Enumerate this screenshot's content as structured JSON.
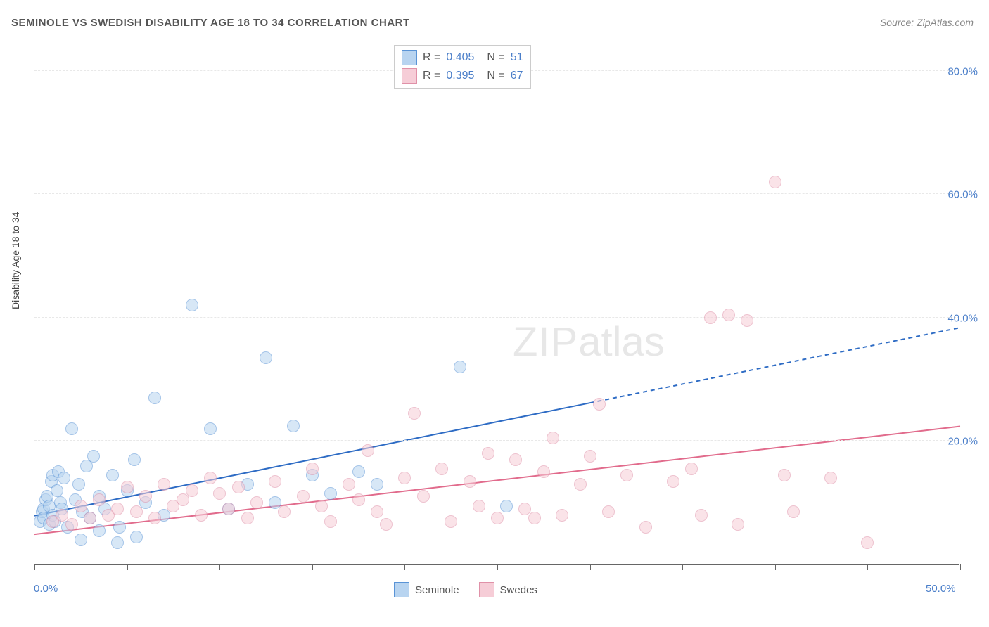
{
  "title": "SEMINOLE VS SWEDISH DISABILITY AGE 18 TO 34 CORRELATION CHART",
  "source": "Source: ZipAtlas.com",
  "y_axis_label": "Disability Age 18 to 34",
  "watermark": {
    "bold": "ZIP",
    "rest": "atlas"
  },
  "chart": {
    "type": "scatter",
    "xlim": [
      0,
      50
    ],
    "ylim": [
      0,
      85
    ],
    "x_ticks": [
      0,
      5,
      10,
      15,
      20,
      25,
      30,
      35,
      40,
      45,
      50
    ],
    "x_tick_labels": {
      "0": "0.0%",
      "50": "50.0%"
    },
    "y_ticks": [
      20,
      40,
      60,
      80
    ],
    "y_tick_labels": [
      "20.0%",
      "40.0%",
      "60.0%",
      "80.0%"
    ],
    "background_color": "#ffffff",
    "grid_color": "#e8e8e8",
    "axis_color": "#666666",
    "point_radius": 9,
    "point_opacity": 0.55,
    "series": [
      {
        "name": "Seminole",
        "color_fill": "#b8d4f0",
        "color_stroke": "#5a94d6",
        "R": "0.405",
        "N": "51",
        "trend": {
          "x1": 0,
          "y1": 8.0,
          "x2": 50,
          "y2": 38.5,
          "solid_until_x": 30,
          "color": "#2d6bc4",
          "width": 2
        },
        "points": [
          [
            0.3,
            7.0
          ],
          [
            0.4,
            8.5
          ],
          [
            0.5,
            9.0
          ],
          [
            0.5,
            7.5
          ],
          [
            0.6,
            10.5
          ],
          [
            0.7,
            11.0
          ],
          [
            0.8,
            6.5
          ],
          [
            0.8,
            9.5
          ],
          [
            0.9,
            13.5
          ],
          [
            1.0,
            14.5
          ],
          [
            1.0,
            8.0
          ],
          [
            1.1,
            7.0
          ],
          [
            1.2,
            12.0
          ],
          [
            1.3,
            15.0
          ],
          [
            1.4,
            10.0
          ],
          [
            1.5,
            9.0
          ],
          [
            1.6,
            14.0
          ],
          [
            1.8,
            6.0
          ],
          [
            2.0,
            22.0
          ],
          [
            2.2,
            10.5
          ],
          [
            2.4,
            13.0
          ],
          [
            2.6,
            8.5
          ],
          [
            2.8,
            16.0
          ],
          [
            3.0,
            7.5
          ],
          [
            3.2,
            17.5
          ],
          [
            3.5,
            11.0
          ],
          [
            3.8,
            9.0
          ],
          [
            4.2,
            14.5
          ],
          [
            4.6,
            6.0
          ],
          [
            5.0,
            12.0
          ],
          [
            5.4,
            17.0
          ],
          [
            6.0,
            10.0
          ],
          [
            6.5,
            27.0
          ],
          [
            7.0,
            8.0
          ],
          [
            2.5,
            4.0
          ],
          [
            3.5,
            5.5
          ],
          [
            4.5,
            3.5
          ],
          [
            5.5,
            4.5
          ],
          [
            8.5,
            42.0
          ],
          [
            9.5,
            22.0
          ],
          [
            10.5,
            9.0
          ],
          [
            11.5,
            13.0
          ],
          [
            12.5,
            33.5
          ],
          [
            13.0,
            10.0
          ],
          [
            14.0,
            22.5
          ],
          [
            15.0,
            14.5
          ],
          [
            16.0,
            11.5
          ],
          [
            17.5,
            15.0
          ],
          [
            18.5,
            13.0
          ],
          [
            23.0,
            32.0
          ],
          [
            25.5,
            9.5
          ]
        ]
      },
      {
        "name": "Swedes",
        "color_fill": "#f6cdd7",
        "color_stroke": "#e091a8",
        "R": "0.395",
        "N": "67",
        "trend": {
          "x1": 0,
          "y1": 5.0,
          "x2": 50,
          "y2": 22.5,
          "solid_until_x": 50,
          "color": "#e16b8c",
          "width": 2
        },
        "points": [
          [
            1.0,
            7.0
          ],
          [
            1.5,
            8.0
          ],
          [
            2.0,
            6.5
          ],
          [
            2.5,
            9.5
          ],
          [
            3.0,
            7.5
          ],
          [
            3.5,
            10.5
          ],
          [
            4.0,
            8.0
          ],
          [
            4.5,
            9.0
          ],
          [
            5.0,
            12.5
          ],
          [
            5.5,
            8.5
          ],
          [
            6.0,
            11.0
          ],
          [
            6.5,
            7.5
          ],
          [
            7.0,
            13.0
          ],
          [
            7.5,
            9.5
          ],
          [
            8.0,
            10.5
          ],
          [
            8.5,
            12.0
          ],
          [
            9.0,
            8.0
          ],
          [
            9.5,
            14.0
          ],
          [
            10.0,
            11.5
          ],
          [
            10.5,
            9.0
          ],
          [
            11.0,
            12.5
          ],
          [
            11.5,
            7.5
          ],
          [
            12.0,
            10.0
          ],
          [
            13.0,
            13.5
          ],
          [
            13.5,
            8.5
          ],
          [
            14.5,
            11.0
          ],
          [
            15.0,
            15.5
          ],
          [
            15.5,
            9.5
          ],
          [
            16.0,
            7.0
          ],
          [
            17.0,
            13.0
          ],
          [
            17.5,
            10.5
          ],
          [
            18.0,
            18.5
          ],
          [
            18.5,
            8.5
          ],
          [
            19.0,
            6.5
          ],
          [
            20.0,
            14.0
          ],
          [
            20.5,
            24.5
          ],
          [
            21.0,
            11.0
          ],
          [
            22.0,
            15.5
          ],
          [
            22.5,
            7.0
          ],
          [
            23.5,
            13.5
          ],
          [
            24.0,
            9.5
          ],
          [
            24.5,
            18.0
          ],
          [
            25.0,
            7.5
          ],
          [
            26.0,
            17.0
          ],
          [
            26.5,
            9.0
          ],
          [
            27.0,
            7.5
          ],
          [
            27.5,
            15.0
          ],
          [
            28.0,
            20.5
          ],
          [
            28.5,
            8.0
          ],
          [
            29.5,
            13.0
          ],
          [
            30.0,
            17.5
          ],
          [
            30.5,
            26.0
          ],
          [
            31.0,
            8.5
          ],
          [
            32.0,
            14.5
          ],
          [
            33.0,
            6.0
          ],
          [
            34.5,
            13.5
          ],
          [
            35.5,
            15.5
          ],
          [
            36.0,
            8.0
          ],
          [
            37.5,
            40.5
          ],
          [
            38.5,
            39.5
          ],
          [
            38.0,
            6.5
          ],
          [
            40.5,
            14.5
          ],
          [
            41.0,
            8.5
          ],
          [
            45.0,
            3.5
          ],
          [
            40.0,
            62.0
          ],
          [
            43.0,
            14.0
          ],
          [
            36.5,
            40.0
          ]
        ]
      }
    ]
  },
  "legend_bottom": [
    {
      "label": "Seminole",
      "fill": "#b8d4f0",
      "stroke": "#5a94d6"
    },
    {
      "label": "Swedes",
      "fill": "#f6cdd7",
      "stroke": "#e091a8"
    }
  ]
}
